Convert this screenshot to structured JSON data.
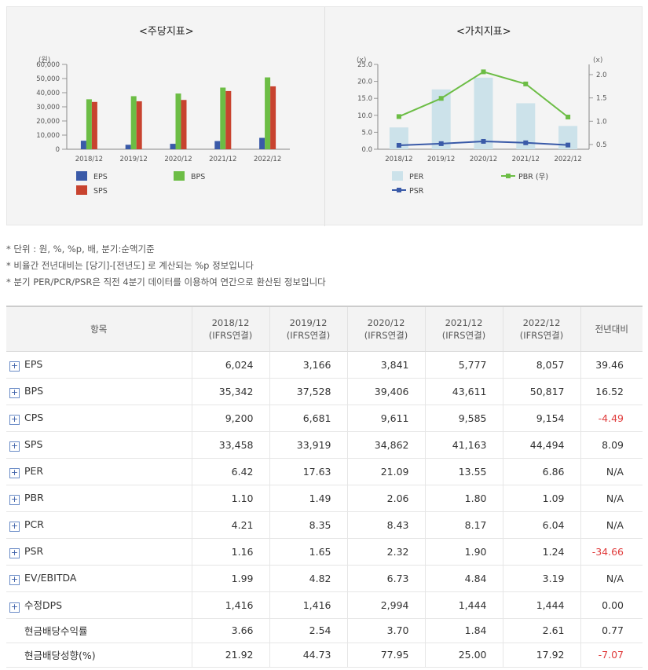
{
  "chart_data": [
    {
      "type": "bar",
      "title": "<주당지표>",
      "ylabel": "(원)",
      "categories": [
        "2018/12",
        "2019/12",
        "2020/12",
        "2021/12",
        "2022/12"
      ],
      "ylim": [
        0,
        60000
      ],
      "yticks": [
        "0",
        "10,000",
        "20,000",
        "30,000",
        "40,000",
        "50,000",
        "60,000"
      ],
      "series": [
        {
          "name": "EPS",
          "color": "#3a5aa8",
          "values": [
            6024,
            3166,
            3841,
            5777,
            8057
          ]
        },
        {
          "name": "BPS",
          "color": "#6cbd45",
          "values": [
            35342,
            37528,
            39406,
            43611,
            50817
          ]
        },
        {
          "name": "SPS",
          "color": "#c8432f",
          "values": [
            33458,
            33919,
            34862,
            41163,
            44494
          ]
        }
      ]
    },
    {
      "type": "bar",
      "title": "<가치지표>",
      "ylabel": "(x)",
      "y2label": "(x)",
      "categories": [
        "2018/12",
        "2019/12",
        "2020/12",
        "2021/12",
        "2022/12"
      ],
      "ylim": [
        0,
        25
      ],
      "yticks": [
        "0.0",
        "5.0",
        "10.0",
        "15.0",
        "20.0",
        "25.0"
      ],
      "y2lim": [
        0.5,
        2.0
      ],
      "y2ticks": [
        "0.5",
        "1.0",
        "1.5",
        "2.0"
      ],
      "series": [
        {
          "name": "PER",
          "type": "bar",
          "color": "#cce2ea",
          "values": [
            6.42,
            17.63,
            21.09,
            13.55,
            6.86
          ]
        },
        {
          "name": "PBR (우)",
          "type": "line",
          "axis": "right",
          "color": "#6cbd45",
          "values": [
            1.1,
            1.49,
            2.06,
            1.8,
            1.09
          ]
        },
        {
          "name": "PSR",
          "type": "line",
          "axis": "left",
          "color": "#3a5aa8",
          "values": [
            1.16,
            1.65,
            2.32,
            1.9,
            1.24
          ]
        }
      ]
    }
  ],
  "notes": [
    "* 단위 : 원, %, %p, 배, 분기:순액기준",
    "* 비율간 전년대비는 [당기]-[전년도] 로 계산되는 %p 정보입니다",
    "* 분기 PER/PCR/PSR은 직전 4분기 데이터를 이용하여 연간으로 환산된 정보입니다"
  ],
  "table": {
    "headers": [
      "항목",
      "2018/12\n(IFRS연결)",
      "2019/12\n(IFRS연결)",
      "2020/12\n(IFRS연결)",
      "2021/12\n(IFRS연결)",
      "2022/12\n(IFRS연결)",
      "전년대비"
    ],
    "rows": [
      {
        "label": "EPS",
        "expand": true,
        "values": [
          "6,024",
          "3,166",
          "3,841",
          "5,777",
          "8,057",
          "39.46"
        ],
        "neg": false
      },
      {
        "label": "BPS",
        "expand": true,
        "values": [
          "35,342",
          "37,528",
          "39,406",
          "43,611",
          "50,817",
          "16.52"
        ],
        "neg": false
      },
      {
        "label": "CPS",
        "expand": true,
        "values": [
          "9,200",
          "6,681",
          "9,611",
          "9,585",
          "9,154",
          "-4.49"
        ],
        "neg": true
      },
      {
        "label": "SPS",
        "expand": true,
        "values": [
          "33,458",
          "33,919",
          "34,862",
          "41,163",
          "44,494",
          "8.09"
        ],
        "neg": false
      },
      {
        "label": "PER",
        "expand": true,
        "values": [
          "6.42",
          "17.63",
          "21.09",
          "13.55",
          "6.86",
          "N/A"
        ],
        "neg": false
      },
      {
        "label": "PBR",
        "expand": true,
        "values": [
          "1.10",
          "1.49",
          "2.06",
          "1.80",
          "1.09",
          "N/A"
        ],
        "neg": false
      },
      {
        "label": "PCR",
        "expand": true,
        "values": [
          "4.21",
          "8.35",
          "8.43",
          "8.17",
          "6.04",
          "N/A"
        ],
        "neg": false
      },
      {
        "label": "PSR",
        "expand": true,
        "values": [
          "1.16",
          "1.65",
          "2.32",
          "1.90",
          "1.24",
          "-34.66"
        ],
        "neg": true
      },
      {
        "label": "EV/EBITDA",
        "expand": true,
        "values": [
          "1.99",
          "4.82",
          "6.73",
          "4.84",
          "3.19",
          "N/A"
        ],
        "neg": false
      },
      {
        "label": "수정DPS",
        "expand": true,
        "values": [
          "1,416",
          "1,416",
          "2,994",
          "1,444",
          "1,444",
          "0.00"
        ],
        "neg": false
      },
      {
        "label": "현금배당수익률",
        "expand": false,
        "values": [
          "3.66",
          "2.54",
          "3.70",
          "1.84",
          "2.61",
          "0.77"
        ],
        "neg": false
      },
      {
        "label": "현금배당성향(%)",
        "expand": false,
        "values": [
          "21.92",
          "44.73",
          "77.95",
          "25.00",
          "17.92",
          "-7.07"
        ],
        "neg": true
      }
    ]
  },
  "icons": {
    "expand": "plus-box-icon"
  }
}
